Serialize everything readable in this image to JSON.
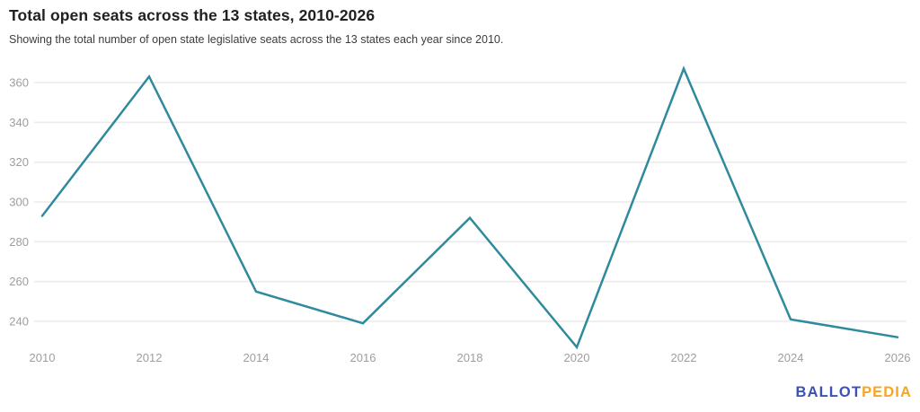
{
  "page": {
    "title": "Total open seats across the 13 states, 2010-2026",
    "subtitle": "Showing the total number of open state legislative seats across the 13 states each year since 2010."
  },
  "logo": {
    "part1": "BALLOT",
    "part2": "PEDIA",
    "part1_color": "#3c51b5",
    "part2_color": "#f6a623"
  },
  "chart_data": {
    "type": "line",
    "title": "Total open seats across the 13 states, 2010-2026",
    "subtitle": "Showing the total number of open state legislative seats across the 13 states each year since 2010.",
    "x": [
      2010,
      2012,
      2014,
      2016,
      2018,
      2020,
      2022,
      2024,
      2026
    ],
    "series": [
      {
        "name": "Total open seats",
        "values": [
          293,
          363,
          255,
          239,
          292,
          227,
          367,
          241,
          232
        ]
      }
    ],
    "x_ticks": [
      "2010",
      "2012",
      "2014",
      "2016",
      "2018",
      "2020",
      "2022",
      "2024",
      "2026"
    ],
    "y_ticks": [
      240,
      260,
      280,
      300,
      320,
      340,
      360
    ],
    "xlabel": "",
    "ylabel": "",
    "ylim": [
      220,
      375
    ],
    "grid": "horizontal-only",
    "legend": "none",
    "line_color": "#2f8a9d",
    "gridline_color": "#ebebeb",
    "tick_label_color": "#9e9e9e"
  }
}
